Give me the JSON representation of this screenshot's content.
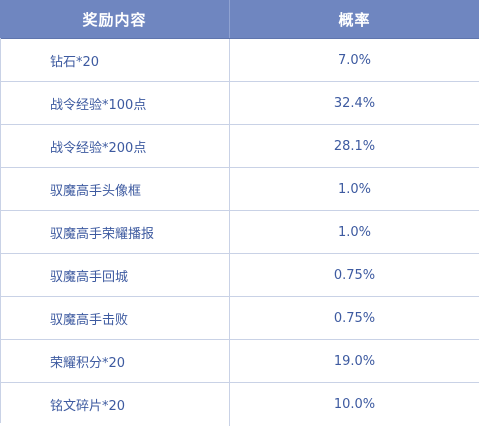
{
  "table": {
    "headers": {
      "item": "奖励内容",
      "rate": "概率"
    },
    "rows": [
      {
        "item": "钻石*20",
        "rate": "7.0%"
      },
      {
        "item": "战令经验*100点",
        "rate": "32.4%"
      },
      {
        "item": "战令经验*200点",
        "rate": "28.1%"
      },
      {
        "item": "驭魔高手头像框",
        "rate": "1.0%"
      },
      {
        "item": "驭魔高手荣耀播报",
        "rate": "1.0%"
      },
      {
        "item": "驭魔高手回城",
        "rate": "0.75%"
      },
      {
        "item": "驭魔高手击败",
        "rate": "0.75%"
      },
      {
        "item": "荣耀积分*20",
        "rate": "19.0%"
      },
      {
        "item": "铭文碎片*20",
        "rate": "10.0%"
      }
    ]
  },
  "colors": {
    "header_bg": "#6f86c0",
    "header_text": "#ffffff",
    "cell_text": "#3d5aa0",
    "grid_line": "#c9d2e6"
  }
}
